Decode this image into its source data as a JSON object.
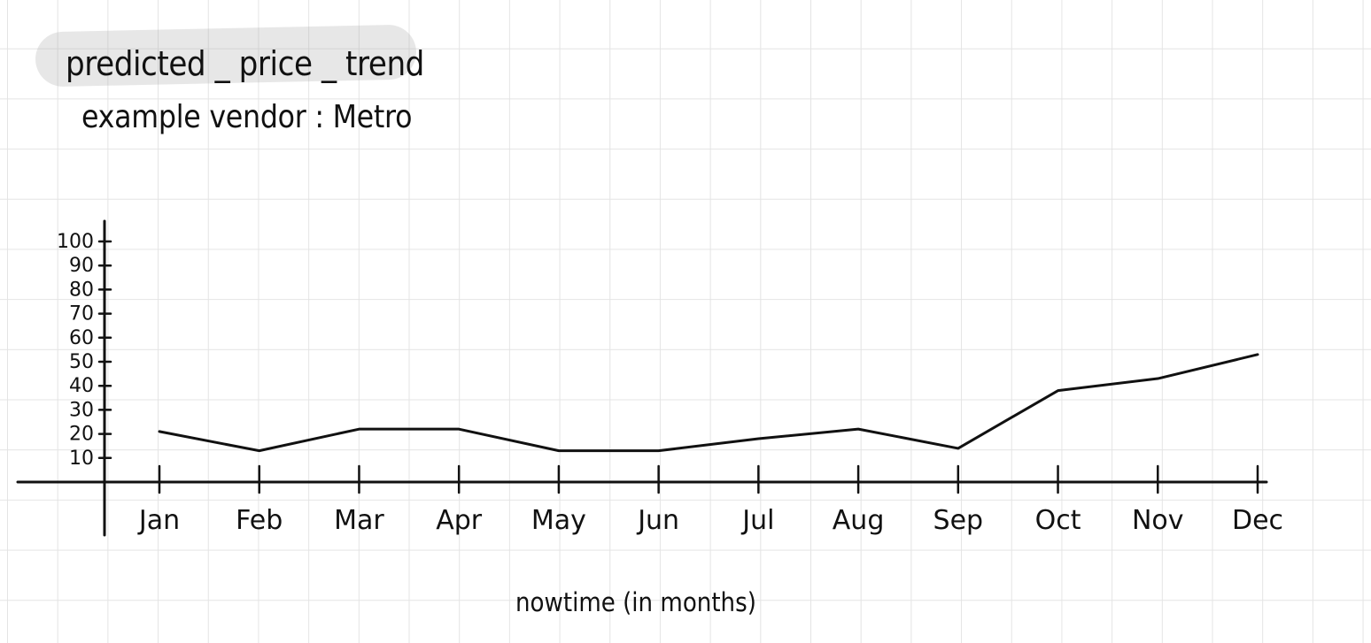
{
  "chart_data": {
    "type": "line",
    "title": "predicted _ price _ trend",
    "subtitle": "example vendor :  Metro",
    "xlabel": "nowtime (in months)",
    "ylabel": "",
    "categories": [
      "Jan",
      "Feb",
      "Mar",
      "Apr",
      "May",
      "Jun",
      "Jul",
      "Aug",
      "Sep",
      "Oct",
      "Nov",
      "Dec"
    ],
    "values": [
      21,
      13,
      22,
      22,
      13,
      13,
      18,
      22,
      14,
      38,
      43,
      53
    ],
    "yticks": [
      10,
      20,
      30,
      40,
      50,
      60,
      70,
      80,
      90,
      100
    ],
    "ylim": [
      0,
      100
    ],
    "grid": false,
    "line_color": "#111111"
  },
  "colors": {
    "ink": "#111111",
    "paper_grid": "#e4e4e4",
    "highlight": "#aaaaaa"
  }
}
